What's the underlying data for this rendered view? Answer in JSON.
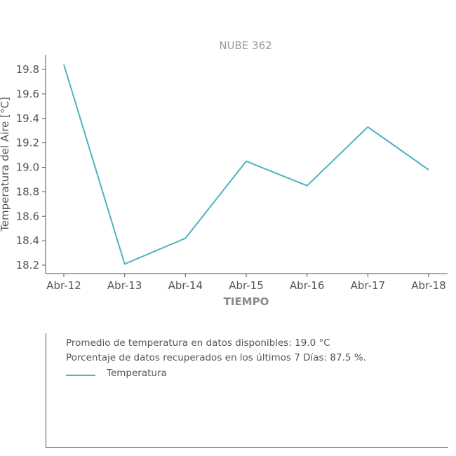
{
  "chart_data": {
    "type": "line",
    "title": "NUBE 362",
    "xlabel": "TIEMPO",
    "ylabel": "Temperatura del Aire [°C]",
    "categories": [
      "Abr-12",
      "Abr-13",
      "Abr-14",
      "Abr-15",
      "Abr-16",
      "Abr-17",
      "Abr-18"
    ],
    "series": [
      {
        "name": "Temperatura",
        "values": [
          19.84,
          18.21,
          18.42,
          19.05,
          18.85,
          19.33,
          18.98
        ],
        "color": "#4db3c2"
      }
    ],
    "yticks": [
      "18.2",
      "18.4",
      "18.6",
      "18.8",
      "19.0",
      "19.2",
      "19.4",
      "19.6",
      "19.8"
    ],
    "ylim": [
      18.15,
      19.92
    ],
    "grid": false,
    "legend": "below"
  },
  "info": {
    "line1": "Promedio de temperatura en datos disponibles: 19.0 °C",
    "line2": "Porcentaje de datos recuperados en los últimos 7 Días: 87.5 %.",
    "legend_label": "Temperatura"
  }
}
